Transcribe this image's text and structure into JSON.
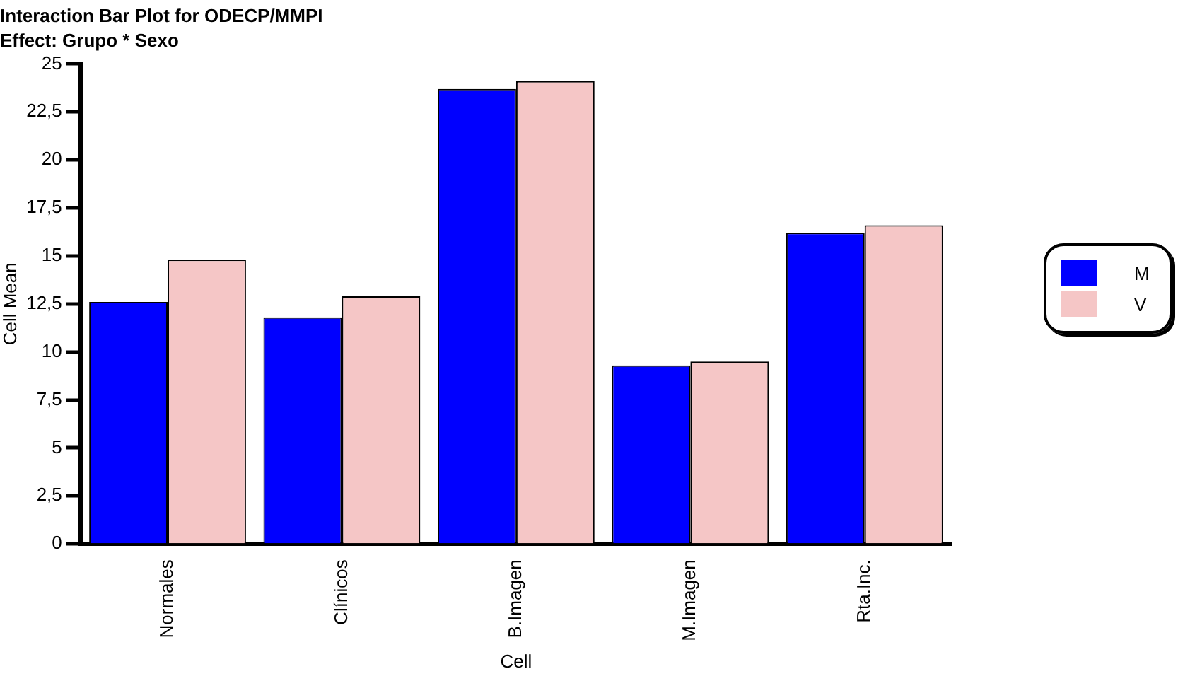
{
  "chart_data": {
    "type": "bar",
    "title": "Interaction Bar Plot for ODECP/MMPI",
    "subtitle": "Effect: Grupo * Sexo",
    "xlabel": "Cell",
    "ylabel": "Cell Mean",
    "categories": [
      "Normales",
      "Clínicos",
      "B.Imagen",
      "M.Imagen",
      "Rta.Inc."
    ],
    "series": [
      {
        "name": "M",
        "color": "#0000ff",
        "values": [
          12.6,
          11.8,
          23.7,
          9.3,
          16.2
        ]
      },
      {
        "name": "V",
        "color": "#f5c6c6",
        "values": [
          14.8,
          12.9,
          24.1,
          9.5,
          16.6
        ]
      }
    ],
    "ylim": [
      0,
      25
    ],
    "yticks": [
      0,
      {
        "value": 2.5,
        "label": "2,5"
      },
      5,
      {
        "value": 7.5,
        "label": "7,5"
      },
      10,
      {
        "value": 12.5,
        "label": "12,5"
      },
      15,
      {
        "value": 17.5,
        "label": "17,5"
      },
      20,
      {
        "value": 22.5,
        "label": "22,5"
      },
      25
    ],
    "grid": false,
    "legend": "right"
  }
}
